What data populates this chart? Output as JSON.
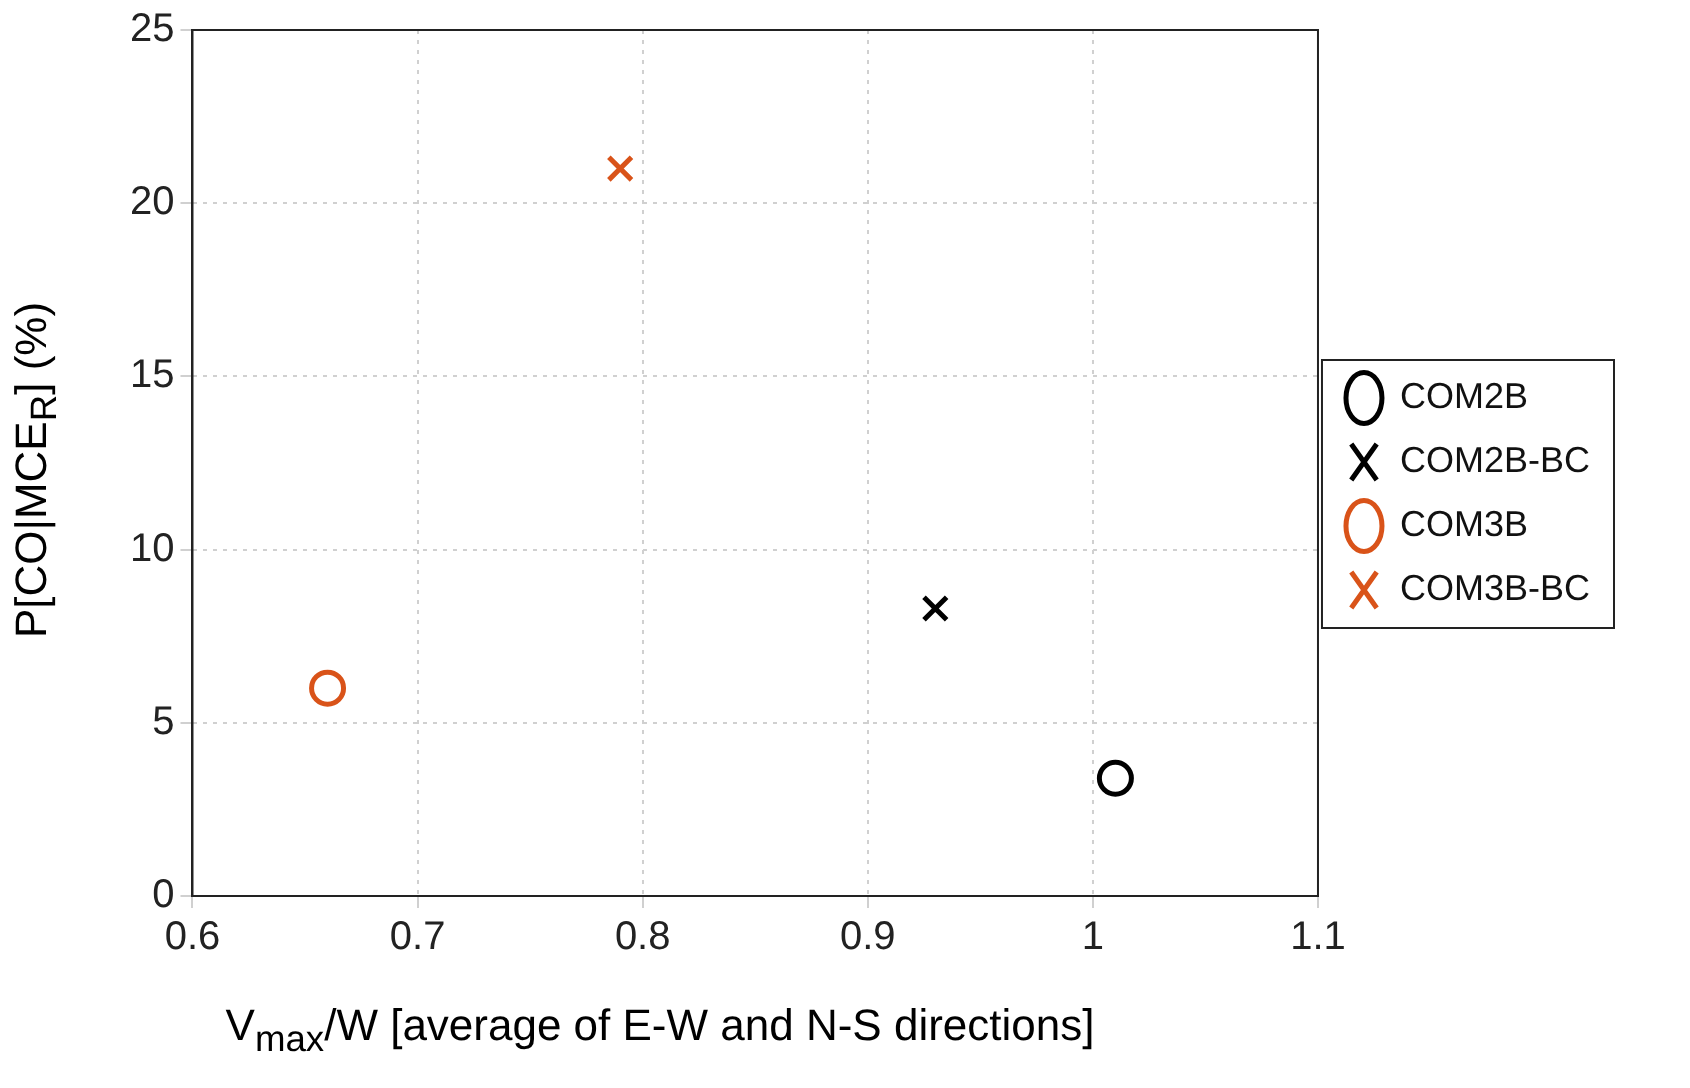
{
  "chart_data": {
    "type": "scatter",
    "xlabel": "V$_{max}$/W [average of E-W and N-S directions]",
    "ylabel": "P[CO|MCE$_{R}$] (%)",
    "xlim": [
      0.6,
      1.1
    ],
    "xticks": [
      0.6,
      0.7,
      0.8,
      0.9,
      1,
      1.1
    ],
    "ylim": [
      0,
      25
    ],
    "yticks": [
      0,
      5,
      10,
      15,
      20,
      25
    ],
    "grid": true,
    "legend": "right",
    "series": [
      {
        "name": "COM2B",
        "color": "#000000",
        "marker": "circle",
        "x": [
          1.01
        ],
        "values": [
          3.4
        ]
      },
      {
        "name": "COM2B-BC",
        "color": "#000000",
        "marker": "cross",
        "x": [
          0.93
        ],
        "values": [
          8.3
        ]
      },
      {
        "name": "COM3B",
        "color": "#d95319",
        "marker": "circle",
        "x": [
          0.66
        ],
        "values": [
          6.0
        ]
      },
      {
        "name": "COM3B-BC",
        "color": "#d95319",
        "marker": "cross",
        "x": [
          0.79
        ],
        "values": [
          21.0
        ]
      }
    ]
  }
}
